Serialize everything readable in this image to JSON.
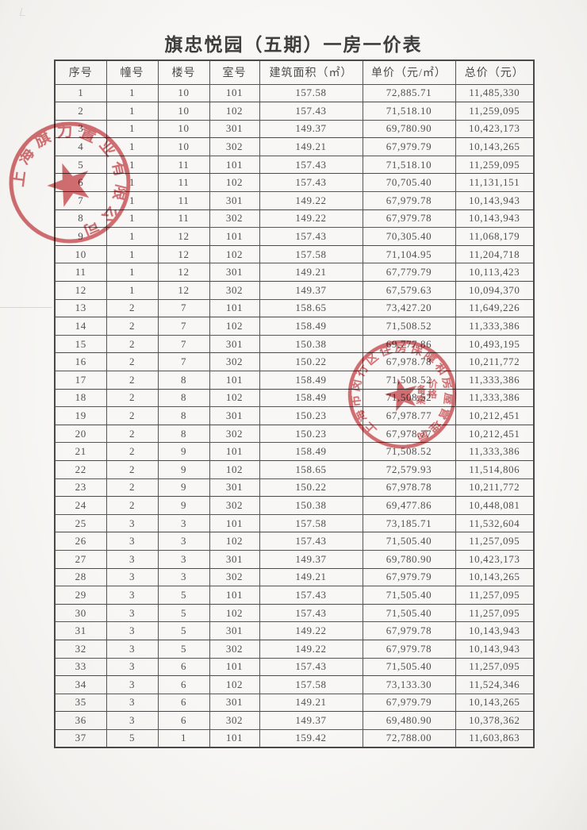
{
  "title": "旗忠悦园（五期）一房一价表",
  "table": {
    "columns": [
      "序号",
      "幢号",
      "楼号",
      "室号",
      "建筑面积（㎡）",
      "单价（元/㎡）",
      "总价（元）"
    ],
    "rows": [
      [
        "1",
        "1",
        "10",
        "101",
        "157.58",
        "72,885.71",
        "11,485,330"
      ],
      [
        "2",
        "1",
        "10",
        "102",
        "157.43",
        "71,518.10",
        "11,259,095"
      ],
      [
        "3",
        "1",
        "10",
        "301",
        "149.37",
        "69,780.90",
        "10,423,173"
      ],
      [
        "4",
        "1",
        "10",
        "302",
        "149.21",
        "67,979.79",
        "10,143,265"
      ],
      [
        "5",
        "1",
        "11",
        "101",
        "157.43",
        "71,518.10",
        "11,259,095"
      ],
      [
        "6",
        "1",
        "11",
        "102",
        "157.43",
        "70,705.40",
        "11,131,151"
      ],
      [
        "7",
        "1",
        "11",
        "301",
        "149.22",
        "67,979.78",
        "10,143,943"
      ],
      [
        "8",
        "1",
        "11",
        "302",
        "149.22",
        "67,979.78",
        "10,143,943"
      ],
      [
        "9",
        "1",
        "12",
        "101",
        "157.43",
        "70,305.40",
        "11,068,179"
      ],
      [
        "10",
        "1",
        "12",
        "102",
        "157.58",
        "71,104.95",
        "11,204,718"
      ],
      [
        "11",
        "1",
        "12",
        "301",
        "149.21",
        "67,779.79",
        "10,113,423"
      ],
      [
        "12",
        "1",
        "12",
        "302",
        "149.37",
        "67,579.63",
        "10,094,370"
      ],
      [
        "13",
        "2",
        "7",
        "101",
        "158.65",
        "73,427.20",
        "11,649,226"
      ],
      [
        "14",
        "2",
        "7",
        "102",
        "158.49",
        "71,508.52",
        "11,333,386"
      ],
      [
        "15",
        "2",
        "7",
        "301",
        "150.38",
        "69,777.86",
        "10,493,195"
      ],
      [
        "16",
        "2",
        "7",
        "302",
        "150.22",
        "67,978.78",
        "10,211,772"
      ],
      [
        "17",
        "2",
        "8",
        "101",
        "158.49",
        "71,508.52",
        "11,333,386"
      ],
      [
        "18",
        "2",
        "8",
        "102",
        "158.49",
        "71,508.52",
        "11,333,386"
      ],
      [
        "19",
        "2",
        "8",
        "301",
        "150.23",
        "67,978.77",
        "10,212,451"
      ],
      [
        "20",
        "2",
        "8",
        "302",
        "150.23",
        "67,978.77",
        "10,212,451"
      ],
      [
        "21",
        "2",
        "9",
        "101",
        "158.49",
        "71,508.52",
        "11,333,386"
      ],
      [
        "22",
        "2",
        "9",
        "102",
        "158.65",
        "72,579.93",
        "11,514,806"
      ],
      [
        "23",
        "2",
        "9",
        "301",
        "150.22",
        "67,978.78",
        "10,211,772"
      ],
      [
        "24",
        "2",
        "9",
        "302",
        "150.38",
        "69,477.86",
        "10,448,081"
      ],
      [
        "25",
        "3",
        "3",
        "101",
        "157.58",
        "73,185.71",
        "11,532,604"
      ],
      [
        "26",
        "3",
        "3",
        "102",
        "157.43",
        "71,505.40",
        "11,257,095"
      ],
      [
        "27",
        "3",
        "3",
        "301",
        "149.37",
        "69,780.90",
        "10,423,173"
      ],
      [
        "28",
        "3",
        "3",
        "302",
        "149.21",
        "67,979.79",
        "10,143,265"
      ],
      [
        "29",
        "3",
        "5",
        "101",
        "157.43",
        "71,505.40",
        "11,257,095"
      ],
      [
        "30",
        "3",
        "5",
        "102",
        "157.43",
        "71,505.40",
        "11,257,095"
      ],
      [
        "31",
        "3",
        "5",
        "301",
        "149.22",
        "67,979.78",
        "10,143,943"
      ],
      [
        "32",
        "3",
        "5",
        "302",
        "149.22",
        "67,979.78",
        "10,143,943"
      ],
      [
        "33",
        "3",
        "6",
        "101",
        "157.43",
        "71,505.40",
        "11,257,095"
      ],
      [
        "34",
        "3",
        "6",
        "102",
        "157.58",
        "73,133.30",
        "11,524,346"
      ],
      [
        "35",
        "3",
        "6",
        "301",
        "149.21",
        "67,979.79",
        "10,143,265"
      ],
      [
        "36",
        "3",
        "6",
        "302",
        "149.37",
        "69,480.90",
        "10,378,362"
      ],
      [
        "37",
        "5",
        "1",
        "101",
        "159.42",
        "72,788.00",
        "11,603,863"
      ]
    ]
  },
  "stamps": {
    "color": "#c9484d",
    "company_seal": {
      "text": "上海旗力置业有限公司"
    },
    "bureau_seal": {
      "text": "上海市闵行区住房保障和房屋管理局",
      "inner_columns": [
        "价格",
        "备案"
      ]
    }
  }
}
